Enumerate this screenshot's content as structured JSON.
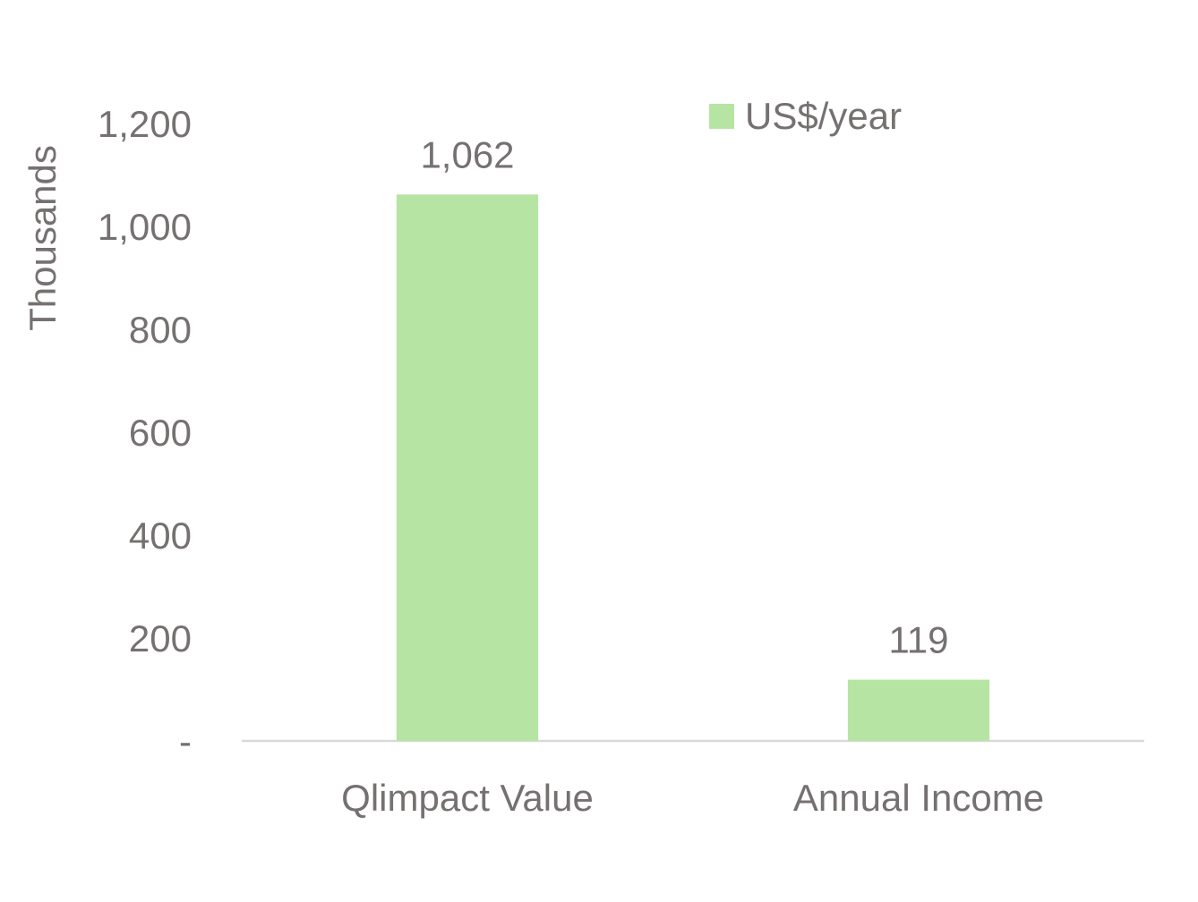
{
  "chart_data": {
    "type": "bar",
    "categories": [
      "Qlimpact Value",
      "Annual Income"
    ],
    "series": [
      {
        "name": "US$/year",
        "values": [
          1062,
          119
        ],
        "color": "#b6e5a3"
      }
    ],
    "data_labels": [
      "1,062",
      "119"
    ],
    "ylabel": "Thousands",
    "ylim": [
      0,
      1200
    ],
    "yticks": [
      0,
      200,
      400,
      600,
      800,
      1000,
      1200
    ],
    "ytick_labels": [
      "-",
      "200",
      "400",
      "600",
      "800",
      "1,000",
      "1,200"
    ],
    "grid": false,
    "legend_position": "top-right",
    "axis_color": "#d9d9d9",
    "text_color": "#767171"
  }
}
